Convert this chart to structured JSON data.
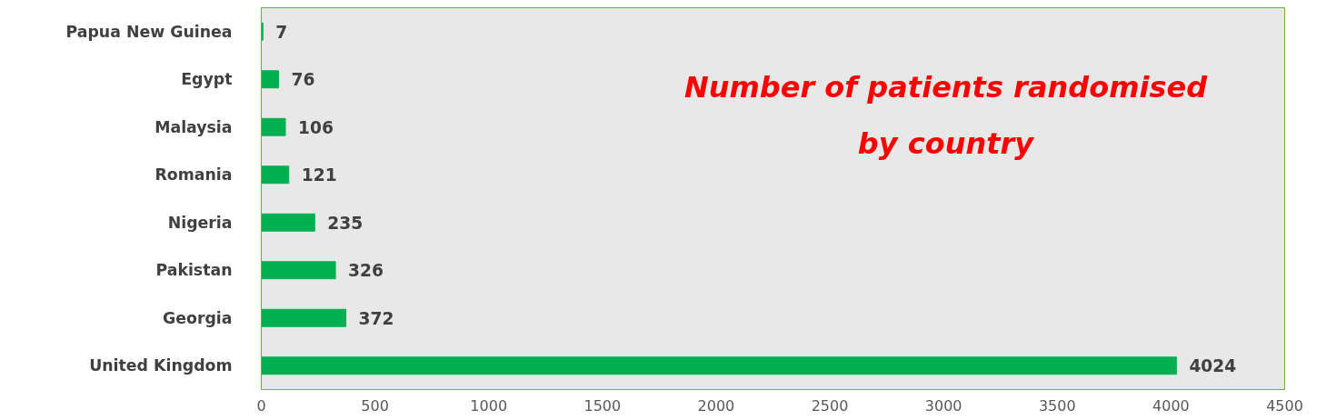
{
  "chart_data": {
    "type": "bar",
    "orientation": "horizontal",
    "title": "Number of patients randomised by country",
    "categories": [
      "Papua New Guinea",
      "Egypt",
      "Malaysia",
      "Romania",
      "Nigeria",
      "Pakistan",
      "Georgia",
      "United Kingdom"
    ],
    "values": [
      7,
      76,
      106,
      121,
      235,
      326,
      372,
      4024
    ],
    "color": "#00b050",
    "xlim": [
      0,
      4500
    ],
    "xticks": [
      0,
      500,
      1000,
      1500,
      2000,
      2500,
      3000,
      3500,
      4000,
      4500
    ],
    "grid": false,
    "data_labels": true
  }
}
